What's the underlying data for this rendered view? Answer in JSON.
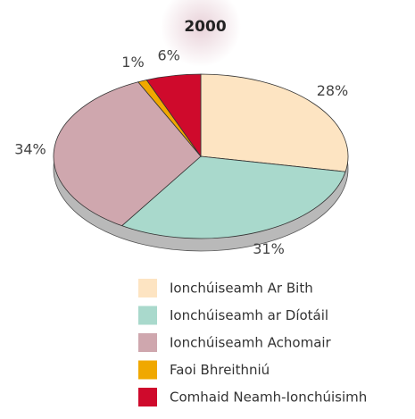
{
  "chart_data": {
    "type": "pie",
    "title": "2000",
    "categories": [
      "Ionchúiseamh Ar Bith",
      "Ionchúiseamh ar Díotáil",
      "Ionchúiseamh Achomair",
      "Faoi Bhreithniú",
      "Comhaid Neamh-Ionchúisimh"
    ],
    "values": [
      28,
      31,
      34,
      1,
      6
    ],
    "value_labels": [
      "28%",
      "31%",
      "34%",
      "1%",
      "6%"
    ],
    "colors": [
      "#fde4c2",
      "#a9d9cc",
      "#cfa7ae",
      "#f0a800",
      "#cf0a2c"
    ]
  }
}
